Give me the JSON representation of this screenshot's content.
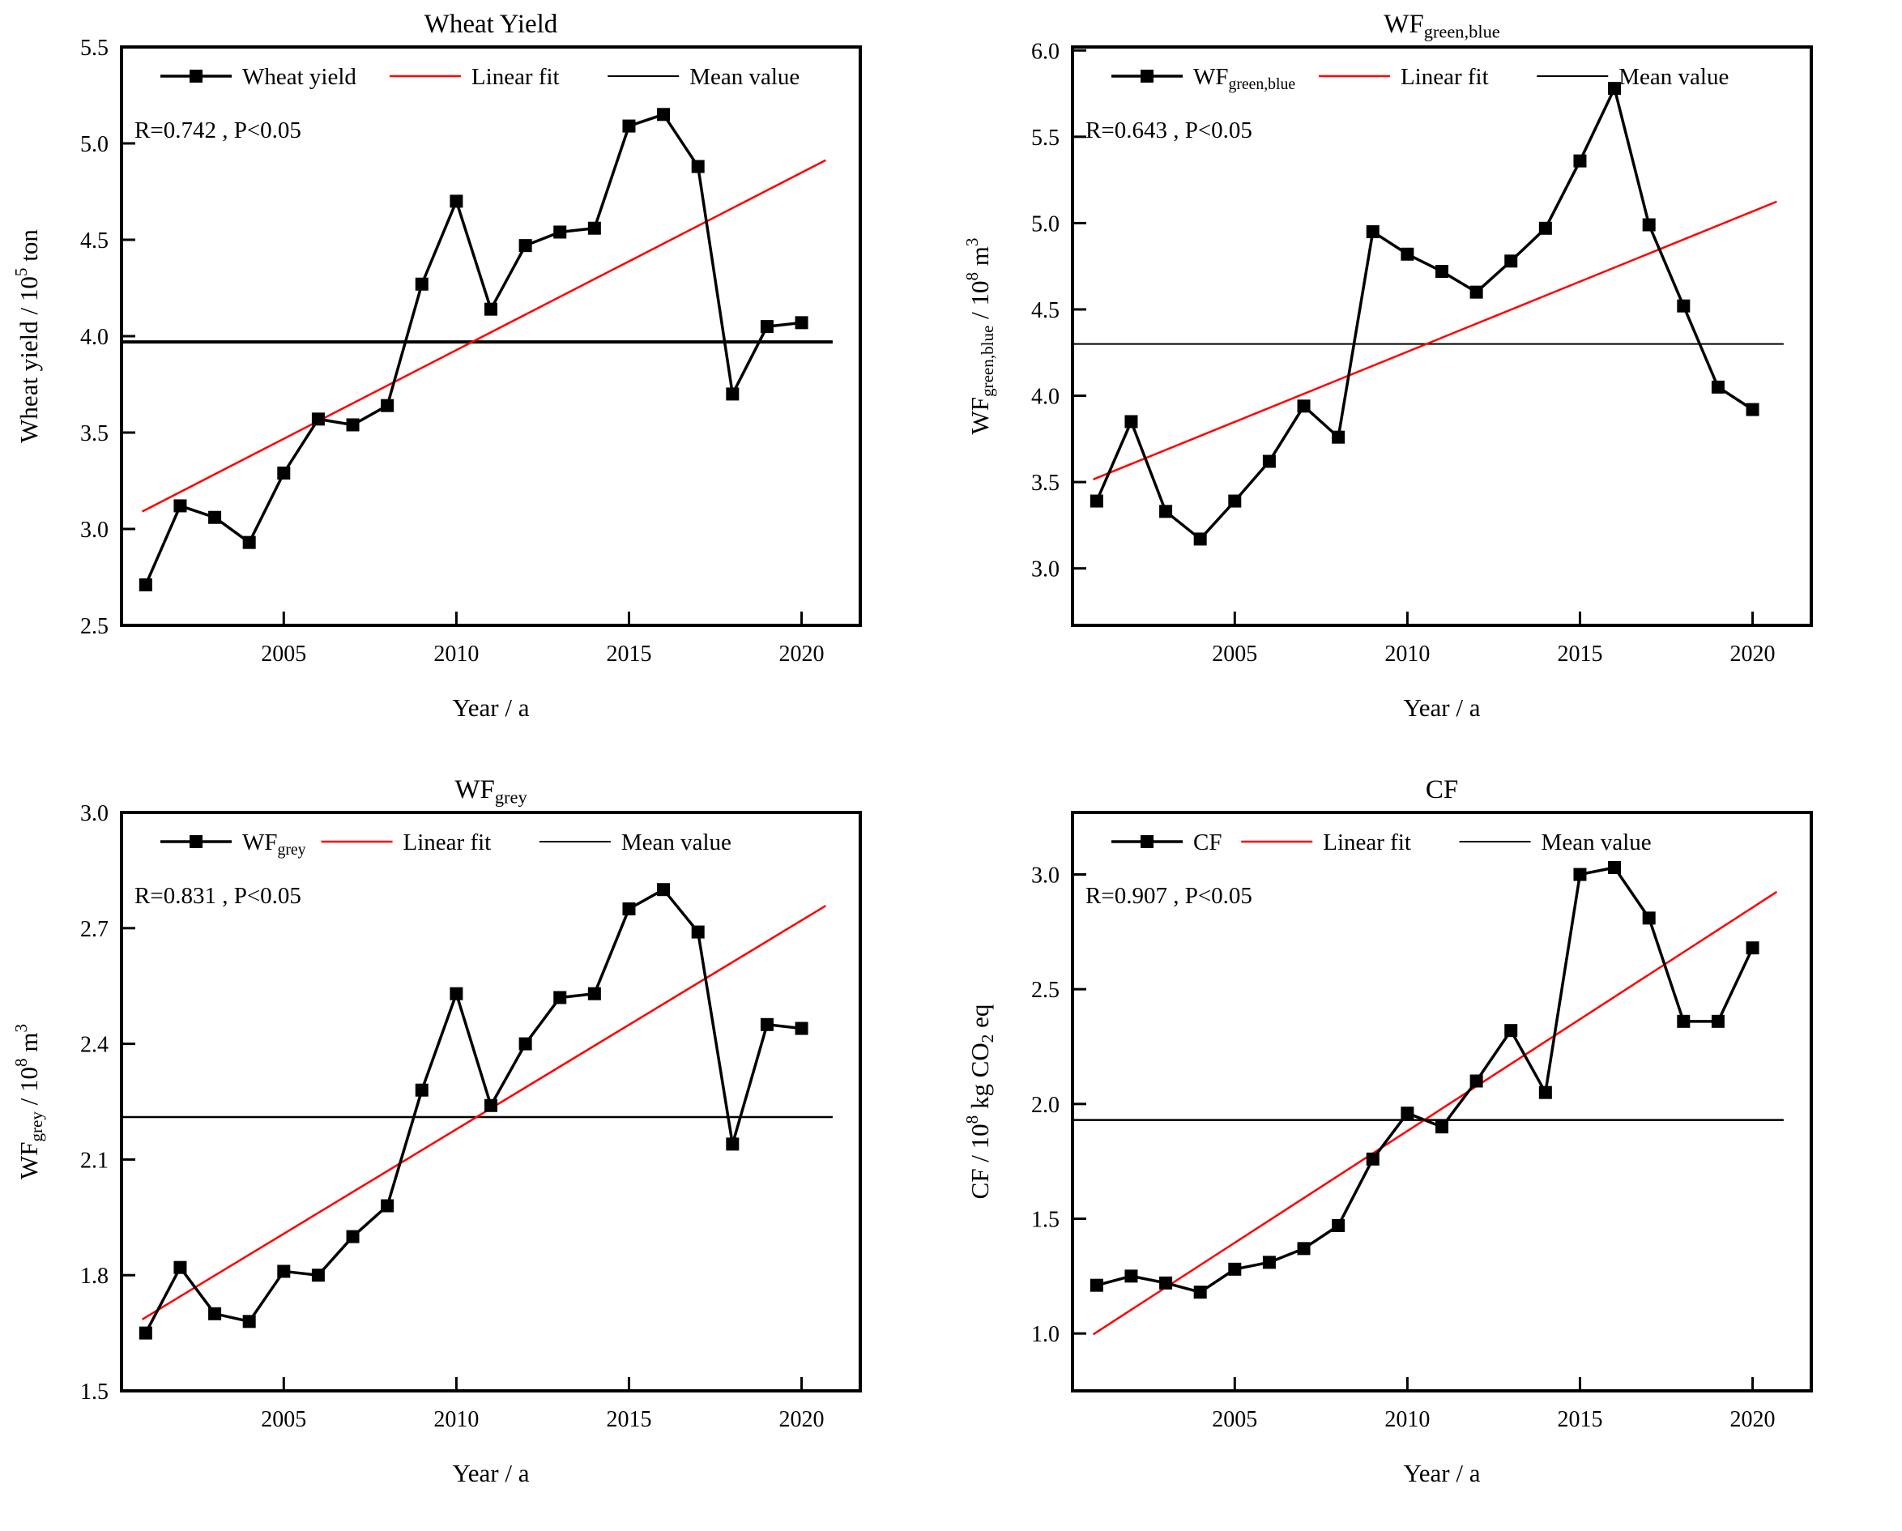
{
  "page": {
    "background": "#ffffff",
    "text_color": "#000000",
    "accent_red": "#ff0000"
  },
  "chart_data": [
    {
      "type": "line",
      "panel": "top-left",
      "title": "Wheat Yield",
      "xlabel": "Year / a",
      "ylabel": "Wheat yield / 10^{5} ton",
      "annotation": "R=0.742 , P<0.05",
      "legend": [
        {
          "label": "Wheat yield",
          "kind": "data-series",
          "color": "#000000"
        },
        {
          "label": "Linear fit",
          "kind": "fit-line",
          "color": "#ff0000"
        },
        {
          "label": "Mean value",
          "kind": "mean-line",
          "color": "#000000"
        }
      ],
      "x": [
        2001,
        2002,
        2003,
        2004,
        2005,
        2006,
        2007,
        2008,
        2009,
        2010,
        2011,
        2012,
        2013,
        2014,
        2015,
        2016,
        2017,
        2018,
        2019,
        2020
      ],
      "values": [
        2.71,
        3.12,
        3.06,
        2.93,
        3.29,
        3.57,
        3.54,
        3.64,
        4.27,
        4.7,
        4.14,
        4.47,
        4.54,
        4.56,
        5.09,
        5.15,
        4.88,
        3.7,
        4.05,
        4.07
      ],
      "mean_value": 3.97,
      "R": 0.742,
      "ylim": [
        2.5,
        5.5
      ],
      "yticks": [
        2.5,
        3.0,
        3.5,
        4.0,
        4.5,
        5.0,
        5.5
      ],
      "xlim": [
        2000.3,
        2021.7
      ],
      "xticks": [
        2005,
        2010,
        2015,
        2020
      ],
      "grid": false,
      "legend_position": "top-inside",
      "mean_linewidth": 4
    },
    {
      "type": "line",
      "panel": "top-right",
      "title": "WF_{green,blue}",
      "xlabel": "Year / a",
      "ylabel": "WF_{green,blue} / 10^{8} m^{3}",
      "annotation": "R=0.643 , P<0.05",
      "legend": [
        {
          "label": "WF_{green,blue}",
          "kind": "data-series",
          "color": "#000000"
        },
        {
          "label": "Linear fit",
          "kind": "fit-line",
          "color": "#ff0000"
        },
        {
          "label": "Mean value",
          "kind": "mean-line",
          "color": "#000000"
        }
      ],
      "x": [
        2001,
        2002,
        2003,
        2004,
        2005,
        2006,
        2007,
        2008,
        2009,
        2010,
        2011,
        2012,
        2013,
        2014,
        2015,
        2016,
        2017,
        2018,
        2019,
        2020
      ],
      "values": [
        3.39,
        3.85,
        3.33,
        3.17,
        3.39,
        3.62,
        3.94,
        3.76,
        4.95,
        4.82,
        4.72,
        4.6,
        4.78,
        4.97,
        5.36,
        5.78,
        4.99,
        4.52,
        4.05,
        3.92
      ],
      "mean_value": 4.3,
      "R": 0.643,
      "ylim": [
        2.67,
        6.02
      ],
      "yticks": [
        3.0,
        3.5,
        4.0,
        4.5,
        5.0,
        5.5,
        6.0
      ],
      "xlim": [
        2000.3,
        2021.7
      ],
      "xticks": [
        2005,
        2010,
        2015,
        2020
      ],
      "grid": false,
      "legend_position": "top-inside",
      "mean_linewidth": 2
    },
    {
      "type": "line",
      "panel": "bottom-left",
      "title": "WF_{grey}",
      "xlabel": "Year / a",
      "ylabel": "WF_{grey} / 10^{8} m^{3}",
      "annotation": "R=0.831 , P<0.05",
      "legend": [
        {
          "label": "WF_{grey}",
          "kind": "data-series",
          "color": "#000000"
        },
        {
          "label": "Linear fit",
          "kind": "fit-line",
          "color": "#ff0000"
        },
        {
          "label": "Mean value",
          "kind": "mean-line",
          "color": "#000000"
        }
      ],
      "x": [
        2001,
        2002,
        2003,
        2004,
        2005,
        2006,
        2007,
        2008,
        2009,
        2010,
        2011,
        2012,
        2013,
        2014,
        2015,
        2016,
        2017,
        2018,
        2019,
        2020
      ],
      "values": [
        1.65,
        1.82,
        1.7,
        1.68,
        1.81,
        1.8,
        1.9,
        1.98,
        2.28,
        2.53,
        2.24,
        2.4,
        2.52,
        2.53,
        2.75,
        2.8,
        2.69,
        2.14,
        2.45,
        2.44
      ],
      "mean_value": 2.21,
      "R": 0.831,
      "ylim": [
        1.5,
        3.0
      ],
      "yticks": [
        1.5,
        1.8,
        2.1,
        2.4,
        2.7,
        3.0
      ],
      "xlim": [
        2000.3,
        2021.7
      ],
      "xticks": [
        2005,
        2010,
        2015,
        2020
      ],
      "grid": false,
      "legend_position": "top-inside",
      "mean_linewidth": 2.5
    },
    {
      "type": "line",
      "panel": "bottom-right",
      "title": "CF",
      "xlabel": "Year / a",
      "ylabel": "CF / 10^{8} kg CO_{2} eq",
      "annotation": "R=0.907 , P<0.05",
      "legend": [
        {
          "label": "CF",
          "kind": "data-series",
          "color": "#000000"
        },
        {
          "label": "Linear fit",
          "kind": "fit-line",
          "color": "#ff0000"
        },
        {
          "label": "Mean value",
          "kind": "mean-line",
          "color": "#000000"
        }
      ],
      "x": [
        2001,
        2002,
        2003,
        2004,
        2005,
        2006,
        2007,
        2008,
        2009,
        2010,
        2011,
        2012,
        2013,
        2014,
        2015,
        2016,
        2017,
        2018,
        2019,
        2020
      ],
      "values": [
        1.21,
        1.25,
        1.22,
        1.18,
        1.28,
        1.31,
        1.37,
        1.47,
        1.76,
        1.96,
        1.9,
        2.1,
        2.32,
        2.05,
        3.0,
        3.03,
        2.81,
        2.36,
        2.36,
        2.68
      ],
      "mean_value": 1.93,
      "R": 0.907,
      "ylim": [
        0.75,
        3.27
      ],
      "yticks": [
        1.0,
        1.5,
        2.0,
        2.5,
        3.0
      ],
      "xlim": [
        2000.3,
        2021.7
      ],
      "xticks": [
        2005,
        2010,
        2015,
        2020
      ],
      "grid": false,
      "legend_position": "top-inside",
      "mean_linewidth": 2.5
    }
  ]
}
